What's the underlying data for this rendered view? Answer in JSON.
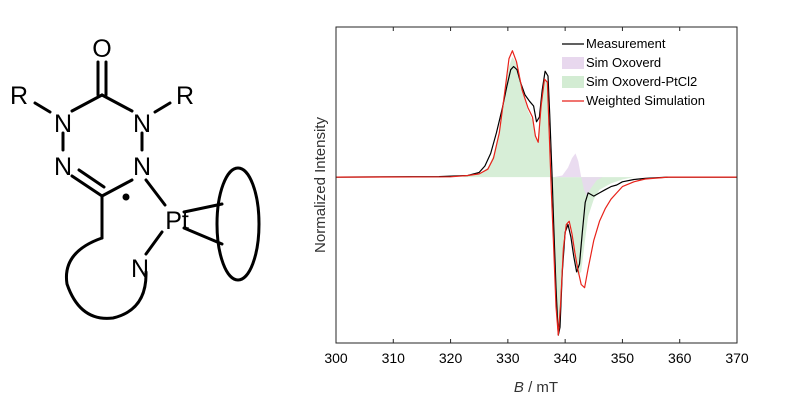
{
  "structure": {
    "atoms": {
      "o": "O",
      "r_left": "R",
      "r_right": "R",
      "n1": "N",
      "n2": "N",
      "n3": "N",
      "n4": "N",
      "pt": "Pt",
      "n_pyridine": "N"
    }
  },
  "chart_data": {
    "type": "line",
    "xlabel_var": "B",
    "xlabel_unit": " / mT",
    "ylabel": "Normalized Intensity",
    "xlim": [
      300,
      370
    ],
    "ylim": [
      -1.05,
      0.95
    ],
    "xticks": [
      300,
      310,
      320,
      330,
      340,
      350,
      360,
      370
    ],
    "yticks_shown": false,
    "grid": false,
    "legend_position": "top-right",
    "colors": {
      "measurement": "#000000",
      "sim_oxoverd": "#e8d8ee",
      "sim_oxoverd_ptcl2": "#d3ecd3",
      "weighted": "#e8221a"
    },
    "series": [
      {
        "name": "Measurement",
        "style": "line",
        "points": [
          [
            300,
            0
          ],
          [
            318,
            0.003
          ],
          [
            323,
            0.01
          ],
          [
            325,
            0.03
          ],
          [
            326,
            0.07
          ],
          [
            327,
            0.15
          ],
          [
            328,
            0.28
          ],
          [
            329,
            0.43
          ],
          [
            329.8,
            0.57
          ],
          [
            330.5,
            0.68
          ],
          [
            331,
            0.7
          ],
          [
            331.6,
            0.68
          ],
          [
            332.2,
            0.6
          ],
          [
            333,
            0.52
          ],
          [
            333.8,
            0.48
          ],
          [
            334.5,
            0.45
          ],
          [
            335,
            0.35
          ],
          [
            335.5,
            0.38
          ],
          [
            336,
            0.55
          ],
          [
            336.5,
            0.67
          ],
          [
            337,
            0.64
          ],
          [
            337.3,
            0.4
          ],
          [
            337.7,
            0.02
          ],
          [
            338,
            -0.3
          ],
          [
            338.4,
            -0.7
          ],
          [
            338.8,
            -1.0
          ],
          [
            339.1,
            -0.95
          ],
          [
            339.5,
            -0.6
          ],
          [
            340,
            -0.35
          ],
          [
            340.5,
            -0.3
          ],
          [
            341,
            -0.38
          ],
          [
            341.5,
            -0.5
          ],
          [
            342,
            -0.6
          ],
          [
            342.5,
            -0.55
          ],
          [
            343,
            -0.35
          ],
          [
            343.5,
            -0.16
          ],
          [
            344,
            -0.1
          ],
          [
            345,
            -0.12
          ],
          [
            346,
            -0.1
          ],
          [
            347,
            -0.08
          ],
          [
            348,
            -0.06
          ],
          [
            349,
            -0.05
          ],
          [
            350,
            -0.03
          ],
          [
            352,
            -0.015
          ],
          [
            354,
            -0.008
          ],
          [
            358,
            0
          ],
          [
            370,
            0
          ]
        ]
      },
      {
        "name": "Sim Oxoverd",
        "style": "area",
        "points": [
          [
            338,
            0
          ],
          [
            339.5,
            0.01
          ],
          [
            340.5,
            0.06
          ],
          [
            341.2,
            0.12
          ],
          [
            341.8,
            0.15
          ],
          [
            342.3,
            0.1
          ],
          [
            342.8,
            0
          ],
          [
            343.3,
            -0.08
          ],
          [
            343.8,
            -0.12
          ],
          [
            344.5,
            -0.07
          ],
          [
            345.5,
            -0.02
          ],
          [
            346.5,
            0
          ]
        ]
      },
      {
        "name": "Sim Oxoverd-PtCl2",
        "style": "area",
        "points": [
          [
            322,
            0
          ],
          [
            325,
            0.02
          ],
          [
            326.5,
            0.06
          ],
          [
            327.5,
            0.14
          ],
          [
            328.5,
            0.3
          ],
          [
            329.5,
            0.55
          ],
          [
            330.2,
            0.7
          ],
          [
            330.8,
            0.76
          ],
          [
            331.5,
            0.72
          ],
          [
            332.5,
            0.55
          ],
          [
            333.5,
            0.42
          ],
          [
            334.3,
            0.36
          ],
          [
            334.8,
            0.25
          ],
          [
            335.3,
            0.22
          ],
          [
            335.8,
            0.45
          ],
          [
            336.4,
            0.62
          ],
          [
            336.9,
            0.6
          ],
          [
            337.2,
            0.3
          ],
          [
            337.6,
            -0.1
          ],
          [
            338,
            -0.45
          ],
          [
            338.4,
            -0.82
          ],
          [
            338.8,
            -0.98
          ],
          [
            339.2,
            -0.8
          ],
          [
            339.7,
            -0.45
          ],
          [
            340.2,
            -0.3
          ],
          [
            340.7,
            -0.28
          ],
          [
            341.2,
            -0.38
          ],
          [
            341.7,
            -0.52
          ],
          [
            342.2,
            -0.62
          ],
          [
            342.8,
            -0.6
          ],
          [
            343.4,
            -0.42
          ],
          [
            344,
            -0.25
          ],
          [
            345,
            -0.14
          ],
          [
            346,
            -0.08
          ],
          [
            348,
            -0.04
          ],
          [
            350,
            -0.015
          ],
          [
            352,
            0
          ]
        ]
      },
      {
        "name": "Weighted Simulation",
        "style": "line",
        "points": [
          [
            300,
            0
          ],
          [
            320,
            0.002
          ],
          [
            323,
            0.01
          ],
          [
            325,
            0.02
          ],
          [
            326.5,
            0.05
          ],
          [
            327.5,
            0.12
          ],
          [
            328.5,
            0.28
          ],
          [
            329.5,
            0.55
          ],
          [
            330.2,
            0.75
          ],
          [
            330.8,
            0.8
          ],
          [
            331.5,
            0.73
          ],
          [
            332.5,
            0.55
          ],
          [
            333.5,
            0.44
          ],
          [
            334.3,
            0.38
          ],
          [
            334.8,
            0.26
          ],
          [
            335.3,
            0.22
          ],
          [
            335.8,
            0.45
          ],
          [
            336.4,
            0.62
          ],
          [
            336.9,
            0.6
          ],
          [
            337.2,
            0.3
          ],
          [
            337.6,
            -0.1
          ],
          [
            338,
            -0.45
          ],
          [
            338.4,
            -0.82
          ],
          [
            338.8,
            -1.0
          ],
          [
            339.2,
            -0.8
          ],
          [
            339.7,
            -0.45
          ],
          [
            340.2,
            -0.3
          ],
          [
            340.7,
            -0.28
          ],
          [
            341.2,
            -0.36
          ],
          [
            341.7,
            -0.48
          ],
          [
            342.2,
            -0.58
          ],
          [
            342.8,
            -0.68
          ],
          [
            343.4,
            -0.7
          ],
          [
            344,
            -0.58
          ],
          [
            345,
            -0.4
          ],
          [
            346,
            -0.28
          ],
          [
            347,
            -0.2
          ],
          [
            348,
            -0.14
          ],
          [
            349,
            -0.1
          ],
          [
            350,
            -0.06
          ],
          [
            352,
            -0.03
          ],
          [
            354,
            -0.012
          ],
          [
            358,
            0
          ],
          [
            370,
            0
          ]
        ]
      }
    ]
  }
}
